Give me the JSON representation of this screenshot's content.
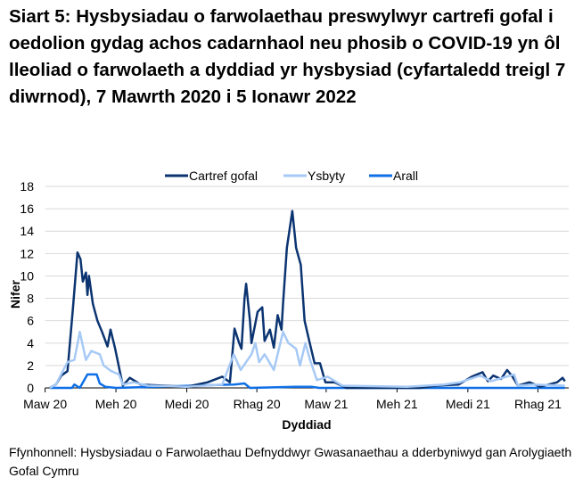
{
  "chart_data": {
    "type": "line",
    "title": "Siart 5: Hysbysiadau o farwolaethau preswylwyr cartrefi gofal i oedolion gydag achos cadarnhaol neu phosib o COVID-19 yn ôl lleoliad o farwolaeth a dyddiad yr hysbysiad (cyfartaledd treigl 7 diwrnod), 7 Mawrth 2020 i 5 Ionawr 2022",
    "xlabel": "Dyddiad",
    "ylabel": "Nifer",
    "ylim": [
      0,
      18
    ],
    "yticks": [
      0,
      2,
      4,
      6,
      8,
      10,
      12,
      14,
      16,
      18
    ],
    "xticks": [
      {
        "date": "2020-03-01",
        "label": "Maw 20"
      },
      {
        "date": "2020-06-01",
        "label": "Meh 20"
      },
      {
        "date": "2020-09-01",
        "label": "Medi 20"
      },
      {
        "date": "2020-12-01",
        "label": "Rhag 20"
      },
      {
        "date": "2021-03-01",
        "label": "Maw 21"
      },
      {
        "date": "2021-06-01",
        "label": "Meh 21"
      },
      {
        "date": "2021-09-01",
        "label": "Medi 21"
      },
      {
        "date": "2021-12-01",
        "label": "Rhag 21"
      }
    ],
    "xlim": [
      "2020-03-01",
      "2022-01-10"
    ],
    "grid": true,
    "legend": "top",
    "series": [
      {
        "name": "Cartref gofal",
        "color": "#0b3471",
        "points": [
          [
            "2020-03-07",
            0
          ],
          [
            "2020-03-15",
            0.3
          ],
          [
            "2020-03-22",
            1.1
          ],
          [
            "2020-03-30",
            1.5
          ],
          [
            "2020-04-06",
            7
          ],
          [
            "2020-04-12",
            12.1
          ],
          [
            "2020-04-16",
            11.5
          ],
          [
            "2020-04-19",
            9.5
          ],
          [
            "2020-04-23",
            10.3
          ],
          [
            "2020-04-25",
            8.3
          ],
          [
            "2020-04-27",
            10
          ],
          [
            "2020-05-02",
            7.5
          ],
          [
            "2020-05-08",
            6
          ],
          [
            "2020-05-14",
            5
          ],
          [
            "2020-05-21",
            3.7
          ],
          [
            "2020-05-25",
            5.2
          ],
          [
            "2020-05-31",
            3.5
          ],
          [
            "2020-06-06",
            1.5
          ],
          [
            "2020-06-10",
            0.2
          ],
          [
            "2020-06-19",
            0.9
          ],
          [
            "2020-07-03",
            0.3
          ],
          [
            "2020-08-01",
            0.2
          ],
          [
            "2020-09-01",
            0.1
          ],
          [
            "2020-09-28",
            0.5
          ],
          [
            "2020-10-17",
            1
          ],
          [
            "2020-10-27",
            0.5
          ],
          [
            "2020-11-02",
            5.3
          ],
          [
            "2020-11-08",
            4
          ],
          [
            "2020-11-11",
            3.5
          ],
          [
            "2020-11-15",
            8
          ],
          [
            "2020-11-17",
            9.3
          ],
          [
            "2020-11-22",
            6
          ],
          [
            "2020-11-24",
            4
          ],
          [
            "2020-12-02",
            6.8
          ],
          [
            "2020-12-08",
            7.2
          ],
          [
            "2020-12-11",
            4.2
          ],
          [
            "2020-12-18",
            5.2
          ],
          [
            "2020-12-23",
            3.6
          ],
          [
            "2020-12-28",
            6.5
          ],
          [
            "2021-01-02",
            5.2
          ],
          [
            "2021-01-04",
            7.5
          ],
          [
            "2021-01-09",
            12.5
          ],
          [
            "2021-01-16",
            15.8
          ],
          [
            "2021-01-21",
            12.5
          ],
          [
            "2021-01-27",
            11
          ],
          [
            "2021-02-01",
            6
          ],
          [
            "2021-02-07",
            4.2
          ],
          [
            "2021-02-14",
            2.2
          ],
          [
            "2021-02-21",
            2.2
          ],
          [
            "2021-02-28",
            0.5
          ],
          [
            "2021-03-12",
            0.5
          ],
          [
            "2021-03-27",
            0
          ],
          [
            "2021-07-01",
            0
          ],
          [
            "2021-07-22",
            0.2
          ],
          [
            "2021-08-20",
            0.3
          ],
          [
            "2021-09-06",
            1
          ],
          [
            "2021-09-20",
            1.4
          ],
          [
            "2021-09-27",
            0.6
          ],
          [
            "2021-10-04",
            1.1
          ],
          [
            "2021-10-14",
            0.8
          ],
          [
            "2021-10-22",
            1.6
          ],
          [
            "2021-10-29",
            1
          ],
          [
            "2021-11-05",
            0.2
          ],
          [
            "2021-11-20",
            0.5
          ],
          [
            "2021-12-04",
            0.1
          ],
          [
            "2021-12-26",
            0.5
          ],
          [
            "2022-01-02",
            0.9
          ],
          [
            "2022-01-05",
            0.6
          ]
        ]
      },
      {
        "name": "Ysbyty",
        "color": "#a6c9f5",
        "points": [
          [
            "2020-03-07",
            0
          ],
          [
            "2020-03-15",
            0.3
          ],
          [
            "2020-03-30",
            2.3
          ],
          [
            "2020-04-08",
            2.5
          ],
          [
            "2020-04-15",
            5
          ],
          [
            "2020-04-23",
            2.5
          ],
          [
            "2020-04-30",
            3.3
          ],
          [
            "2020-05-11",
            3
          ],
          [
            "2020-05-16",
            2
          ],
          [
            "2020-05-26",
            1.5
          ],
          [
            "2020-06-05",
            1.2
          ],
          [
            "2020-06-10",
            0.3
          ],
          [
            "2020-06-24",
            0.5
          ],
          [
            "2020-07-12",
            0.2
          ],
          [
            "2020-09-01",
            0.1
          ],
          [
            "2020-10-17",
            0.3
          ],
          [
            "2020-11-01",
            3
          ],
          [
            "2020-11-10",
            1.6
          ],
          [
            "2020-11-24",
            3
          ],
          [
            "2020-11-29",
            4
          ],
          [
            "2020-12-04",
            2.3
          ],
          [
            "2020-12-11",
            3
          ],
          [
            "2020-12-23",
            1.6
          ],
          [
            "2021-01-04",
            5
          ],
          [
            "2021-01-11",
            4
          ],
          [
            "2021-01-21",
            3.5
          ],
          [
            "2021-01-26",
            2
          ],
          [
            "2021-02-02",
            4
          ],
          [
            "2021-02-08",
            2.5
          ],
          [
            "2021-02-17",
            0.7
          ],
          [
            "2021-03-03",
            1
          ],
          [
            "2021-03-22",
            0.2
          ],
          [
            "2021-06-14",
            0.1
          ],
          [
            "2021-08-01",
            0.3
          ],
          [
            "2021-08-22",
            0.5
          ],
          [
            "2021-09-17",
            1.1
          ],
          [
            "2021-10-01",
            0.6
          ],
          [
            "2021-10-31",
            1.2
          ],
          [
            "2021-11-05",
            0.2
          ],
          [
            "2021-11-25",
            0.3
          ],
          [
            "2022-01-05",
            0.2
          ]
        ]
      },
      {
        "name": "Arall",
        "color": "#0f6fe6",
        "points": [
          [
            "2020-03-07",
            0
          ],
          [
            "2020-04-05",
            0
          ],
          [
            "2020-04-08",
            0.3
          ],
          [
            "2020-04-15",
            0
          ],
          [
            "2020-04-25",
            1.2
          ],
          [
            "2020-05-07",
            1.2
          ],
          [
            "2020-05-11",
            0.4
          ],
          [
            "2020-05-18",
            0.1
          ],
          [
            "2020-06-01",
            0
          ],
          [
            "2020-11-01",
            0.3
          ],
          [
            "2020-11-15",
            0.4
          ],
          [
            "2020-11-22",
            0
          ],
          [
            "2021-01-20",
            0.1
          ],
          [
            "2021-02-10",
            0.1
          ],
          [
            "2021-02-20",
            0
          ],
          [
            "2022-01-05",
            0
          ]
        ]
      }
    ]
  },
  "source": "Ffynhonnell: Hysbysiadau o Farwolaethau Defnyddwyr Gwasanaethau a dderbyniwyd gan Arolygiaeth Gofal Cymru"
}
